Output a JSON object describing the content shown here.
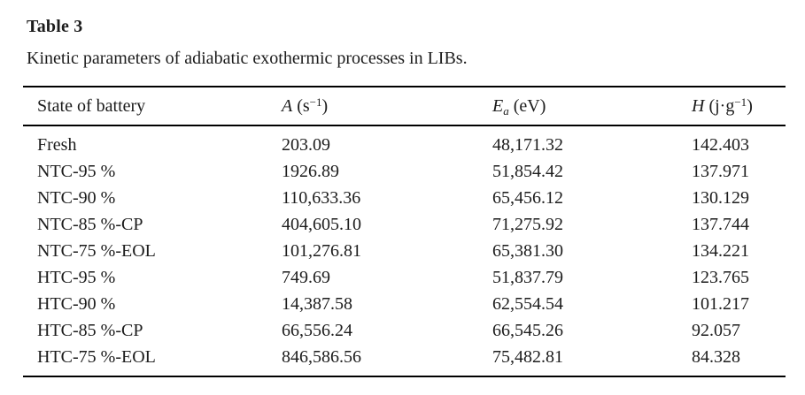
{
  "page": {
    "title": "Table 3",
    "caption": "Kinetic parameters of adiabatic exothermic processes in LIBs."
  },
  "table": {
    "columns": [
      {
        "name": "state",
        "parts": [
          {
            "text": "State of battery"
          }
        ]
      },
      {
        "name": "a",
        "parts": [
          {
            "text": "A",
            "italic": true
          },
          {
            "text": " (s"
          },
          {
            "text": "−1",
            "sup": true
          },
          {
            "text": ")"
          }
        ]
      },
      {
        "name": "ea",
        "parts": [
          {
            "text": "E",
            "italic": true
          },
          {
            "text": "a",
            "sub": true,
            "italic": true
          },
          {
            "text": " (eV)"
          }
        ]
      },
      {
        "name": "h",
        "parts": [
          {
            "text": "H",
            "italic": true
          },
          {
            "text": " (j·g"
          },
          {
            "text": "−1",
            "sup": true
          },
          {
            "text": ")"
          }
        ]
      }
    ],
    "rows": [
      [
        "Fresh",
        "203.09",
        "48,171.32",
        "142.403"
      ],
      [
        "NTC-95 %",
        "1926.89",
        "51,854.42",
        "137.971"
      ],
      [
        "NTC-90 %",
        "110,633.36",
        "65,456.12",
        "130.129"
      ],
      [
        "NTC-85 %-CP",
        "404,605.10",
        "71,275.92",
        "137.744"
      ],
      [
        "NTC-75 %-EOL",
        "101,276.81",
        "65,381.30",
        "134.221"
      ],
      [
        "HTC-95 %",
        "749.69",
        "51,837.79",
        "123.765"
      ],
      [
        "HTC-90 %",
        "14,387.58",
        "62,554.54",
        "101.217"
      ],
      [
        "HTC-85 %-CP",
        "66,556.24",
        "66,545.26",
        "92.057"
      ],
      [
        "HTC-75 %-EOL",
        "846,586.56",
        "75,482.81",
        "84.328"
      ]
    ]
  },
  "colors": {
    "text": "#1c1c1c",
    "rule": "#000000",
    "background": "#ffffff"
  }
}
